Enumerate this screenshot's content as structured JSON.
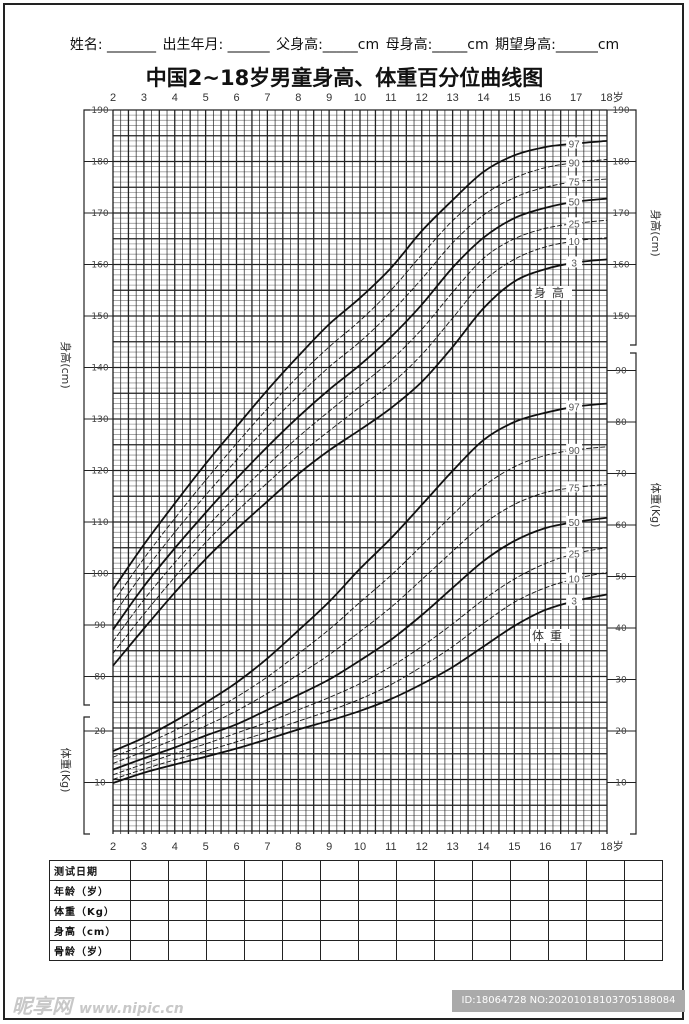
{
  "header": {
    "fields": [
      "姓名: _______",
      "出生年月: ______",
      "父身高:_____cm",
      "母身高:_____cm",
      "期望身高:______cm"
    ]
  },
  "title": "中国2~18岁男童身高、体重百分位曲线图",
  "chart_data": [
    {
      "type": "line",
      "name_label": "身高",
      "ylabel": "身高(cm)",
      "xlabel_unit": "岁",
      "x": [
        2,
        3,
        4,
        5,
        6,
        7,
        8,
        9,
        10,
        11,
        12,
        13,
        14,
        15,
        16,
        17,
        18
      ],
      "xlim": [
        2,
        18
      ],
      "ylim_left": [
        75,
        190
      ],
      "ylim_right": [
        145,
        190
      ],
      "yticks_left": [
        80,
        90,
        100,
        110,
        120,
        130,
        140,
        150,
        160,
        170,
        180,
        190
      ],
      "yticks_right": [
        150,
        160,
        170,
        180,
        190
      ],
      "grid": true,
      "series": [
        {
          "name": "3",
          "values": [
            82.1,
            89.3,
            96.3,
            102.8,
            108.6,
            114.0,
            119.3,
            123.9,
            127.9,
            132.1,
            137.2,
            144.0,
            151.5,
            156.7,
            159.1,
            160.4,
            161.0
          ]
        },
        {
          "name": "10",
          "values": [
            84.5,
            92.1,
            99.3,
            106.0,
            112.0,
            117.6,
            122.9,
            127.7,
            132.3,
            136.8,
            142.5,
            149.6,
            156.7,
            161.0,
            163.4,
            164.6,
            165.2
          ]
        },
        {
          "name": "25",
          "values": [
            86.8,
            94.9,
            102.1,
            108.8,
            115.1,
            121.0,
            126.5,
            131.5,
            136.4,
            141.4,
            147.4,
            154.6,
            161.2,
            165.0,
            167.0,
            168.0,
            168.6
          ]
        },
        {
          "name": "50",
          "values": [
            89.1,
            97.5,
            104.9,
            111.8,
            118.4,
            124.6,
            130.4,
            135.7,
            140.5,
            145.9,
            152.2,
            159.4,
            165.2,
            169.0,
            171.0,
            172.2,
            172.8
          ]
        },
        {
          "name": "75",
          "values": [
            91.8,
            100.3,
            108.0,
            115.2,
            122.0,
            128.5,
            134.5,
            140.1,
            145.0,
            150.7,
            157.2,
            164.2,
            169.6,
            173.0,
            175.0,
            176.1,
            176.6
          ]
        },
        {
          "name": "90",
          "values": [
            94.4,
            102.9,
            110.7,
            118.1,
            125.2,
            132.0,
            138.3,
            144.0,
            149.1,
            155.0,
            161.9,
            168.5,
            173.5,
            176.8,
            178.8,
            179.8,
            180.4
          ]
        },
        {
          "name": "97",
          "values": [
            96.9,
            105.6,
            113.6,
            121.3,
            128.5,
            135.6,
            142.2,
            148.4,
            153.5,
            159.3,
            166.5,
            172.5,
            178.0,
            181.2,
            182.8,
            183.5,
            184.0
          ]
        }
      ]
    },
    {
      "type": "line",
      "name_label": "体重",
      "ylabel": "体重(Kg)",
      "xlabel_unit": "岁",
      "x": [
        2,
        3,
        4,
        5,
        6,
        7,
        8,
        9,
        10,
        11,
        12,
        13,
        14,
        15,
        16,
        17,
        18
      ],
      "xlim": [
        2,
        18
      ],
      "ylim_left": [
        0,
        22
      ],
      "ylim_right": [
        0,
        93
      ],
      "yticks_left": [
        10,
        20
      ],
      "yticks_right": [
        10,
        20,
        30,
        40,
        50,
        60,
        70,
        80,
        90
      ],
      "grid": true,
      "series": [
        {
          "name": "3",
          "values": [
            9.9,
            11.9,
            13.5,
            15.0,
            16.6,
            18.4,
            20.3,
            22.0,
            23.9,
            26.2,
            29.1,
            32.4,
            36.4,
            40.4,
            43.5,
            45.3,
            46.5
          ]
        },
        {
          "name": "10",
          "values": [
            10.6,
            12.6,
            14.4,
            16.1,
            17.9,
            19.8,
            21.9,
            23.9,
            26.2,
            29.0,
            32.5,
            36.4,
            40.9,
            45.0,
            47.8,
            49.6,
            50.8
          ]
        },
        {
          "name": "25",
          "values": [
            11.5,
            13.6,
            15.6,
            17.5,
            19.6,
            21.7,
            24.1,
            26.5,
            29.2,
            32.5,
            36.4,
            40.8,
            45.5,
            49.5,
            52.5,
            54.5,
            55.6
          ]
        },
        {
          "name": "50",
          "values": [
            12.5,
            14.7,
            16.8,
            19.1,
            21.3,
            24.1,
            27.0,
            30.0,
            33.7,
            37.7,
            42.5,
            47.8,
            53.0,
            56.9,
            59.4,
            60.6,
            61.4
          ]
        },
        {
          "name": "75",
          "values": [
            13.7,
            16.0,
            18.4,
            21.0,
            23.9,
            27.3,
            30.9,
            34.8,
            39.3,
            44.0,
            49.4,
            54.9,
            60.2,
            64.0,
            66.3,
            67.3,
            67.9
          ]
        },
        {
          "name": "90",
          "values": [
            14.9,
            17.4,
            20.1,
            23.2,
            26.6,
            30.5,
            35.0,
            39.7,
            45.0,
            50.2,
            56.0,
            62.0,
            67.5,
            71.3,
            73.5,
            74.6,
            75.2
          ]
        },
        {
          "name": "97",
          "values": [
            16.1,
            18.7,
            21.9,
            25.5,
            29.4,
            34.1,
            39.5,
            45.1,
            51.5,
            57.4,
            63.9,
            70.5,
            76.5,
            80.0,
            81.8,
            83.0,
            83.6
          ]
        }
      ]
    }
  ],
  "xticks": [
    "2",
    "3",
    "4",
    "5",
    "6",
    "7",
    "8",
    "9",
    "10",
    "11",
    "12",
    "13",
    "14",
    "15",
    "16",
    "17",
    "18岁"
  ],
  "table": {
    "rows": [
      "测试日期",
      "年龄（岁）",
      "体重（Kg）",
      "身高（cm）",
      "骨龄（岁）"
    ],
    "columns": 14
  },
  "watermark": "昵享网",
  "watermark_url": "www.nipic.cn",
  "id_text": "ID:18064728 NO:20201018103705188084"
}
